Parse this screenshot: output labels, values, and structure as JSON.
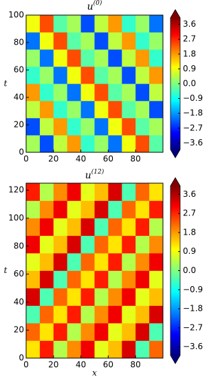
{
  "chart_data": [
    {
      "type": "heatmap",
      "title": "u",
      "title_superscript": "(0)",
      "ylabel": "t",
      "colormap": "jet",
      "clim": [
        -4,
        4
      ],
      "x": [
        0,
        10,
        20,
        30,
        40,
        50,
        60,
        70,
        80,
        90,
        100
      ],
      "y": [
        0,
        12.5,
        25,
        37.5,
        50,
        62.5,
        75,
        87.5,
        100
      ],
      "xlim": [
        0,
        100
      ],
      "ylim": [
        0,
        100
      ],
      "xticks": [
        0,
        20,
        40,
        60,
        80
      ],
      "yticks": [
        0,
        20,
        40,
        60,
        80,
        100
      ],
      "cticks": [
        {
          "value": 3.6,
          "label": "3.6"
        },
        {
          "value": 2.7,
          "label": "2.7"
        },
        {
          "value": 1.8,
          "label": "1.8"
        },
        {
          "value": 0.9,
          "label": "0.9"
        },
        {
          "value": 0,
          "label": "0.0"
        },
        {
          "value": -0.9,
          "label": "−0.9"
        },
        {
          "value": -1.8,
          "label": "−1.8"
        },
        {
          "value": -2.7,
          "label": "−2.7"
        },
        {
          "value": -3.6,
          "label": "−3.6"
        }
      ],
      "z": [
        [
          0.3,
          -2.4,
          0.5,
          1.8,
          -0.6,
          0.2,
          -2.1,
          0.9,
          2.4,
          -0.3
        ],
        [
          -2.4,
          0.5,
          1.8,
          -0.6,
          0.2,
          -2.1,
          0.9,
          2.4,
          -0.3,
          0.3
        ],
        [
          0.5,
          1.8,
          -0.6,
          0.2,
          -2.1,
          0.9,
          2.4,
          -0.3,
          0.3,
          -2.4
        ],
        [
          1.8,
          -0.6,
          0.2,
          -2.1,
          0.9,
          2.4,
          -0.3,
          0.3,
          -2.4,
          0.5
        ],
        [
          -0.6,
          0.2,
          -2.1,
          0.9,
          2.4,
          -0.3,
          0.3,
          -2.4,
          0.5,
          1.8
        ],
        [
          0.2,
          -2.1,
          0.9,
          2.4,
          -0.3,
          0.3,
          -2.4,
          0.5,
          1.8,
          -0.6
        ],
        [
          -2.1,
          0.9,
          2.4,
          -0.3,
          0.3,
          -2.4,
          0.5,
          1.8,
          -0.6,
          0.2
        ],
        [
          0.9,
          2.4,
          -0.3,
          0.3,
          -2.4,
          0.5,
          1.8,
          -0.6,
          0.2,
          -2.1
        ]
      ]
    },
    {
      "type": "heatmap",
      "title": "u",
      "title_superscript": "(12)",
      "ylabel": "t",
      "xlabel": "x",
      "colormap": "jet",
      "clim": [
        -4,
        4
      ],
      "x": [
        0,
        10,
        20,
        30,
        40,
        50,
        60,
        70,
        80,
        90,
        100
      ],
      "y": [
        0,
        12.5,
        25,
        37.5,
        50,
        62.5,
        75,
        87.5,
        100,
        112.5,
        125
      ],
      "xlim": [
        0,
        100
      ],
      "ylim": [
        0,
        125
      ],
      "xticks": [
        0,
        20,
        40,
        60,
        80
      ],
      "yticks": [
        0,
        20,
        40,
        60,
        80,
        100,
        120
      ],
      "cticks": [
        {
          "value": 3.6,
          "label": "3.6"
        },
        {
          "value": 2.7,
          "label": "2.7"
        },
        {
          "value": 1.8,
          "label": "1.8"
        },
        {
          "value": 0.9,
          "label": "0.9"
        },
        {
          "value": 0,
          "label": "0.0"
        },
        {
          "value": -0.9,
          "label": "−0.9"
        },
        {
          "value": -1.8,
          "label": "−1.8"
        },
        {
          "value": -2.7,
          "label": "−2.7"
        },
        {
          "value": -3.6,
          "label": "−3.6"
        }
      ],
      "z": [
        [
          1.2,
          2.8,
          0.4,
          1.9,
          3.1,
          0.8,
          1.5,
          3.3,
          -0.4,
          2.2
        ],
        [
          2.2,
          1.2,
          2.8,
          0.4,
          1.9,
          3.1,
          0.8,
          1.5,
          3.3,
          -0.4
        ],
        [
          -0.4,
          2.2,
          1.2,
          2.8,
          0.4,
          1.9,
          3.1,
          0.8,
          1.5,
          3.3
        ],
        [
          3.3,
          -0.4,
          2.2,
          1.2,
          2.8,
          0.4,
          1.9,
          3.1,
          0.8,
          1.5
        ],
        [
          1.5,
          3.3,
          -0.4,
          2.2,
          1.2,
          2.8,
          0.4,
          1.9,
          3.1,
          0.8
        ],
        [
          0.8,
          1.5,
          3.3,
          -0.4,
          2.2,
          1.2,
          2.8,
          0.4,
          1.9,
          3.1
        ],
        [
          3.1,
          0.8,
          1.5,
          3.3,
          -0.4,
          2.2,
          1.2,
          2.8,
          0.4,
          1.9
        ],
        [
          1.9,
          3.1,
          0.8,
          1.5,
          3.3,
          -0.4,
          2.2,
          1.2,
          2.8,
          0.4
        ],
        [
          0.4,
          1.9,
          3.1,
          0.8,
          1.5,
          3.3,
          -0.4,
          2.2,
          1.2,
          2.8
        ],
        [
          2.8,
          0.4,
          1.9,
          3.1,
          0.8,
          1.5,
          3.3,
          -0.4,
          2.2,
          1.2
        ]
      ]
    }
  ]
}
